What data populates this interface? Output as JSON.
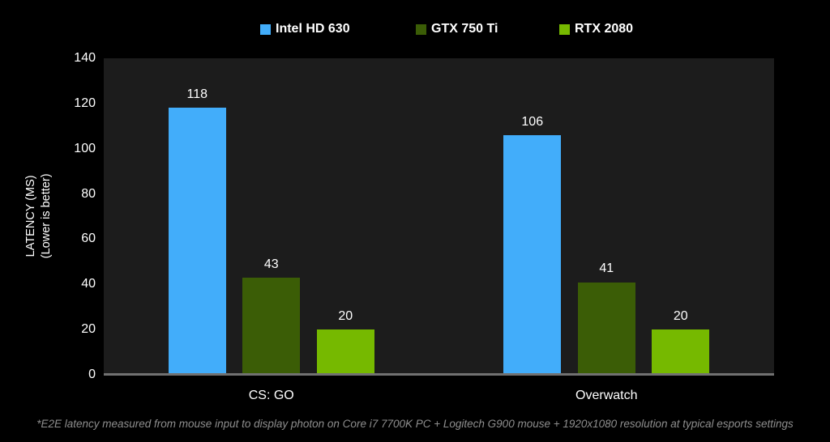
{
  "page": {
    "background": "#000000",
    "plot_background": "#1C1C1C",
    "axis_line_color": "#717171",
    "text_color": "#FFFFFF"
  },
  "legend": {
    "items": [
      {
        "label": "Intel HD 630",
        "color": "#42ADFA",
        "textured": false
      },
      {
        "label": "GTX 750 Ti",
        "color": "#3B5D06",
        "textured": true
      },
      {
        "label": "RTX 2080",
        "color": "#76B900",
        "textured": false
      }
    ]
  },
  "y_axis": {
    "title": "LATENCY (MS)",
    "subtitle": "(Lower is better)"
  },
  "chart_data": {
    "type": "bar",
    "title": "",
    "categories": [
      "CS: GO",
      "Overwatch"
    ],
    "series": [
      {
        "name": "Intel HD 630",
        "color": "#42ADFA",
        "textured": false,
        "values": [
          118,
          106
        ]
      },
      {
        "name": "GTX 750 Ti",
        "color": "#3B5D06",
        "textured": true,
        "values": [
          43,
          41
        ]
      },
      {
        "name": "RTX 2080",
        "color": "#76B900",
        "textured": false,
        "values": [
          20,
          20
        ]
      }
    ],
    "xlabel": "",
    "ylabel": "LATENCY (MS) (Lower is better)",
    "ylim": [
      0,
      140
    ],
    "yticks": [
      0,
      20,
      40,
      60,
      80,
      100,
      120,
      140
    ],
    "grid": false,
    "legend_position": "top",
    "data_labels": true
  },
  "footnote": "*E2E latency measured from mouse input to display photon on Core i7 7700K PC + Logitech G900 mouse + 1920x1080 resolution at typical esports settings"
}
